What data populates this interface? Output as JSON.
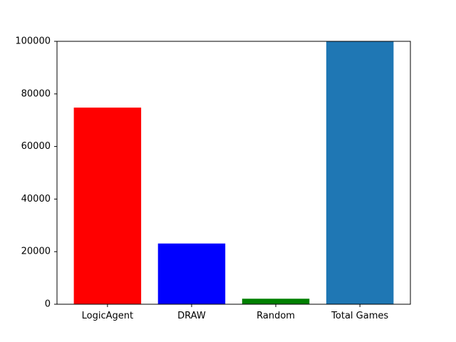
{
  "chart_data": {
    "type": "bar",
    "title": "",
    "xlabel": "",
    "ylabel": "",
    "categories": [
      "LogicAgent",
      "DRAW",
      "Random",
      "Total Games"
    ],
    "values": [
      74800,
      23100,
      2100,
      100000
    ],
    "colors": [
      "#ff0000",
      "#0000ff",
      "#008000",
      "#1f77b4"
    ],
    "ylim": [
      0,
      100000
    ],
    "yticks": [
      0,
      20000,
      40000,
      60000,
      80000,
      100000
    ],
    "ytick_labels": [
      "0",
      "20000",
      "40000",
      "60000",
      "80000",
      "100000"
    ],
    "grid": false,
    "legend": "none"
  }
}
